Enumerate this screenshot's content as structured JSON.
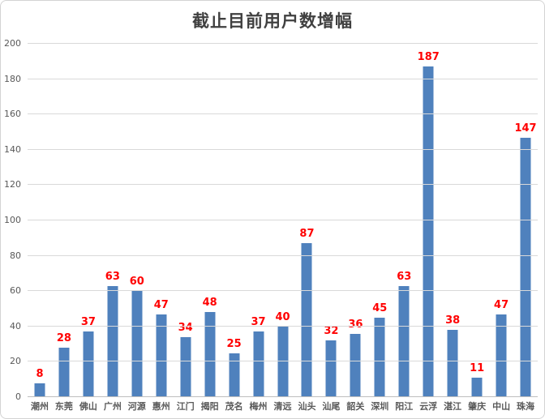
{
  "title": "截止目前用户数增幅",
  "chart_data": {
    "type": "bar",
    "title": "截止目前用户数增幅",
    "categories": [
      "潮州",
      "东莞",
      "佛山",
      "广州",
      "河源",
      "惠州",
      "江门",
      "揭阳",
      "茂名",
      "梅州",
      "清远",
      "汕头",
      "汕尾",
      "韶关",
      "深圳",
      "阳江",
      "云浮",
      "湛江",
      "肇庆",
      "中山",
      "珠海"
    ],
    "values": [
      8,
      28,
      37,
      63,
      60,
      47,
      34,
      48,
      25,
      37,
      40,
      87,
      32,
      36,
      45,
      63,
      187,
      38,
      11,
      47,
      147
    ],
    "xlabel": "",
    "ylabel": "",
    "ylim": [
      0,
      200
    ],
    "yticks": [
      0,
      20,
      40,
      60,
      80,
      100,
      120,
      140,
      160,
      180,
      200
    ],
    "grid": true,
    "legend_position": "none",
    "data_labels_shown": true,
    "colors": {
      "bar": "#4f81bd",
      "data_label": "#ff0000",
      "axis_text": "#595959",
      "gridline": "#d9d9d9",
      "axis_line": "#bfbfbf",
      "title_text": "#404040",
      "background": "#ffffff",
      "border": "#d3d3d3"
    }
  }
}
